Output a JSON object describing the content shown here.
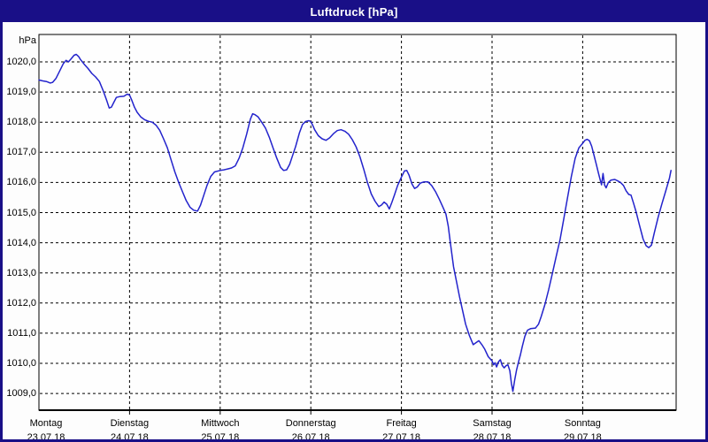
{
  "window": {
    "title": "Luftdruck [hPa]"
  },
  "colors": {
    "chrome": "#190f87",
    "title_text": "#ffffff",
    "line": "#2323cc",
    "grid": "#000000",
    "plot_border": "#000000",
    "background": "#fdfdfd",
    "plot_background": "#fefefe",
    "label_text": "#000000"
  },
  "chart_data": {
    "type": "line",
    "title": "Luftdruck [hPa]",
    "unit_label": "hPa",
    "ylabel": "hPa",
    "xlabel": "",
    "grid": "dashed",
    "legend": "none",
    "ylim": [
      1008.4,
      1020.9
    ],
    "y_tick_values": [
      1020,
      1019,
      1018,
      1017,
      1016,
      1015,
      1014,
      1013,
      1012,
      1011,
      1010,
      1009
    ],
    "y_tick_labels": [
      "1020,0",
      "1019,0",
      "1018,0",
      "1017,0",
      "1016,0",
      "1015,0",
      "1014,0",
      "1013,0",
      "1012,0",
      "1011,0",
      "1010,0",
      "1009,0"
    ],
    "x_days": [
      {
        "name": "Montag",
        "date": "23.07.18"
      },
      {
        "name": "Dienstag",
        "date": "24.07.18"
      },
      {
        "name": "Mittwoch",
        "date": "25.07.18"
      },
      {
        "name": "Donnerstag",
        "date": "26.07.18"
      },
      {
        "name": "Freitag",
        "date": "27.07.18"
      },
      {
        "name": "Samstag",
        "date": "28.07.18"
      },
      {
        "name": "Sonntag",
        "date": "29.07.18"
      }
    ],
    "x_unit": "hours_since_monday_00",
    "x_range_hours": [
      0,
      168
    ],
    "series": [
      {
        "name": "Luftdruck",
        "points": [
          [
            0,
            1019.4
          ],
          [
            1,
            1019.37
          ],
          [
            2,
            1019.35
          ],
          [
            3,
            1019.3
          ],
          [
            3.6,
            1019.32
          ],
          [
            4.5,
            1019.45
          ],
          [
            5.5,
            1019.7
          ],
          [
            6.5,
            1019.95
          ],
          [
            7.2,
            1020.05
          ],
          [
            7.8,
            1020.0
          ],
          [
            8.5,
            1020.1
          ],
          [
            9.3,
            1020.22
          ],
          [
            9.9,
            1020.25
          ],
          [
            10.5,
            1020.18
          ],
          [
            11,
            1020.08
          ],
          [
            12,
            1019.92
          ],
          [
            13,
            1019.78
          ],
          [
            14,
            1019.62
          ],
          [
            15,
            1019.5
          ],
          [
            16,
            1019.35
          ],
          [
            17,
            1019.05
          ],
          [
            18,
            1018.7
          ],
          [
            18.6,
            1018.47
          ],
          [
            19.2,
            1018.5
          ],
          [
            19.8,
            1018.65
          ],
          [
            20.5,
            1018.82
          ],
          [
            21.5,
            1018.85
          ],
          [
            22.5,
            1018.86
          ],
          [
            23.4,
            1018.93
          ],
          [
            24,
            1018.9
          ],
          [
            24.6,
            1018.72
          ],
          [
            25.3,
            1018.5
          ],
          [
            26,
            1018.33
          ],
          [
            27,
            1018.17
          ],
          [
            28,
            1018.08
          ],
          [
            29,
            1018.03
          ],
          [
            30,
            1018.0
          ],
          [
            31,
            1017.9
          ],
          [
            32,
            1017.73
          ],
          [
            33,
            1017.45
          ],
          [
            34,
            1017.15
          ],
          [
            35,
            1016.75
          ],
          [
            36,
            1016.35
          ],
          [
            37,
            1016.0
          ],
          [
            38,
            1015.7
          ],
          [
            39,
            1015.4
          ],
          [
            40,
            1015.18
          ],
          [
            41,
            1015.08
          ],
          [
            42,
            1015.05
          ],
          [
            42.8,
            1015.25
          ],
          [
            43.6,
            1015.55
          ],
          [
            44.5,
            1015.9
          ],
          [
            45.5,
            1016.2
          ],
          [
            46.5,
            1016.35
          ],
          [
            48,
            1016.4
          ],
          [
            49,
            1016.42
          ],
          [
            50,
            1016.45
          ],
          [
            51,
            1016.48
          ],
          [
            52,
            1016.55
          ],
          [
            53,
            1016.8
          ],
          [
            54,
            1017.15
          ],
          [
            55,
            1017.6
          ],
          [
            56,
            1018.1
          ],
          [
            56.6,
            1018.28
          ],
          [
            57.2,
            1018.25
          ],
          [
            58,
            1018.18
          ],
          [
            59,
            1018.0
          ],
          [
            60,
            1017.8
          ],
          [
            61,
            1017.5
          ],
          [
            62,
            1017.15
          ],
          [
            63,
            1016.8
          ],
          [
            64,
            1016.5
          ],
          [
            64.8,
            1016.4
          ],
          [
            65.6,
            1016.42
          ],
          [
            66.4,
            1016.6
          ],
          [
            67.2,
            1016.9
          ],
          [
            68,
            1017.2
          ],
          [
            69,
            1017.65
          ],
          [
            69.8,
            1017.92
          ],
          [
            70.6,
            1018.02
          ],
          [
            71.5,
            1018.05
          ],
          [
            72,
            1018.02
          ],
          [
            72.5,
            1017.9
          ],
          [
            73,
            1017.75
          ],
          [
            74,
            1017.55
          ],
          [
            75,
            1017.45
          ],
          [
            76,
            1017.4
          ],
          [
            77,
            1017.48
          ],
          [
            78,
            1017.62
          ],
          [
            79,
            1017.72
          ],
          [
            80,
            1017.75
          ],
          [
            81,
            1017.7
          ],
          [
            82,
            1017.6
          ],
          [
            83,
            1017.42
          ],
          [
            84,
            1017.18
          ],
          [
            85,
            1016.85
          ],
          [
            86,
            1016.45
          ],
          [
            87,
            1016.0
          ],
          [
            88,
            1015.62
          ],
          [
            89,
            1015.38
          ],
          [
            90,
            1015.2
          ],
          [
            90.7,
            1015.25
          ],
          [
            91.4,
            1015.35
          ],
          [
            92.1,
            1015.28
          ],
          [
            92.8,
            1015.12
          ],
          [
            93.5,
            1015.35
          ],
          [
            94.2,
            1015.6
          ],
          [
            95,
            1015.9
          ],
          [
            96,
            1016.18
          ],
          [
            96.8,
            1016.38
          ],
          [
            97.4,
            1016.4
          ],
          [
            98,
            1016.25
          ],
          [
            98.8,
            1015.95
          ],
          [
            99.5,
            1015.8
          ],
          [
            100.2,
            1015.85
          ],
          [
            101,
            1015.98
          ],
          [
            102,
            1016.02
          ],
          [
            103,
            1016.02
          ],
          [
            104,
            1015.9
          ],
          [
            105,
            1015.7
          ],
          [
            106,
            1015.45
          ],
          [
            107,
            1015.18
          ],
          [
            107.8,
            1014.95
          ],
          [
            108.4,
            1014.55
          ],
          [
            109,
            1013.95
          ],
          [
            109.8,
            1013.2
          ],
          [
            110.6,
            1012.7
          ],
          [
            111.4,
            1012.2
          ],
          [
            112.2,
            1011.75
          ],
          [
            113,
            1011.3
          ],
          [
            114,
            1010.92
          ],
          [
            115,
            1010.62
          ],
          [
            115.7,
            1010.68
          ],
          [
            116.5,
            1010.75
          ],
          [
            117.3,
            1010.62
          ],
          [
            118,
            1010.48
          ],
          [
            119,
            1010.22
          ],
          [
            120,
            1010.08
          ],
          [
            120.4,
            1009.95
          ],
          [
            120.8,
            1010.02
          ],
          [
            121.2,
            1009.88
          ],
          [
            121.7,
            1010.05
          ],
          [
            122.2,
            1010.12
          ],
          [
            122.7,
            1009.93
          ],
          [
            123.2,
            1009.85
          ],
          [
            123.7,
            1009.92
          ],
          [
            124.2,
            1009.95
          ],
          [
            124.7,
            1009.75
          ],
          [
            125.1,
            1009.35
          ],
          [
            125.5,
            1009.07
          ],
          [
            126,
            1009.45
          ],
          [
            126.5,
            1009.78
          ],
          [
            127,
            1010.05
          ],
          [
            127.5,
            1010.28
          ],
          [
            128,
            1010.55
          ],
          [
            128.7,
            1010.9
          ],
          [
            129.4,
            1011.1
          ],
          [
            130.2,
            1011.15
          ],
          [
            131.5,
            1011.17
          ],
          [
            132.3,
            1011.3
          ],
          [
            133,
            1011.55
          ],
          [
            134,
            1011.95
          ],
          [
            135,
            1012.45
          ],
          [
            136,
            1013.0
          ],
          [
            137,
            1013.55
          ],
          [
            138,
            1014.1
          ],
          [
            139,
            1014.8
          ],
          [
            140,
            1015.5
          ],
          [
            141,
            1016.2
          ],
          [
            142,
            1016.8
          ],
          [
            143,
            1017.15
          ],
          [
            144,
            1017.3
          ],
          [
            144.6,
            1017.4
          ],
          [
            145.2,
            1017.43
          ],
          [
            145.8,
            1017.38
          ],
          [
            146.4,
            1017.2
          ],
          [
            147,
            1016.9
          ],
          [
            147.6,
            1016.6
          ],
          [
            148.2,
            1016.3
          ],
          [
            148.7,
            1016.05
          ],
          [
            149,
            1015.92
          ],
          [
            149.4,
            1016.3
          ],
          [
            149.8,
            1015.92
          ],
          [
            150.2,
            1015.82
          ],
          [
            150.8,
            1016.0
          ],
          [
            151.5,
            1016.08
          ],
          [
            152.5,
            1016.1
          ],
          [
            153.3,
            1016.05
          ],
          [
            154,
            1016.0
          ],
          [
            154.8,
            1015.9
          ],
          [
            155.5,
            1015.72
          ],
          [
            156.2,
            1015.6
          ],
          [
            156.8,
            1015.58
          ],
          [
            157.5,
            1015.3
          ],
          [
            158.2,
            1015.0
          ],
          [
            159,
            1014.6
          ],
          [
            160,
            1014.12
          ],
          [
            160.8,
            1013.9
          ],
          [
            161.5,
            1013.84
          ],
          [
            162.2,
            1013.92
          ],
          [
            163,
            1014.35
          ],
          [
            164,
            1014.85
          ],
          [
            165,
            1015.3
          ],
          [
            166,
            1015.72
          ],
          [
            167,
            1016.15
          ],
          [
            167.4,
            1016.4
          ]
        ]
      }
    ]
  }
}
